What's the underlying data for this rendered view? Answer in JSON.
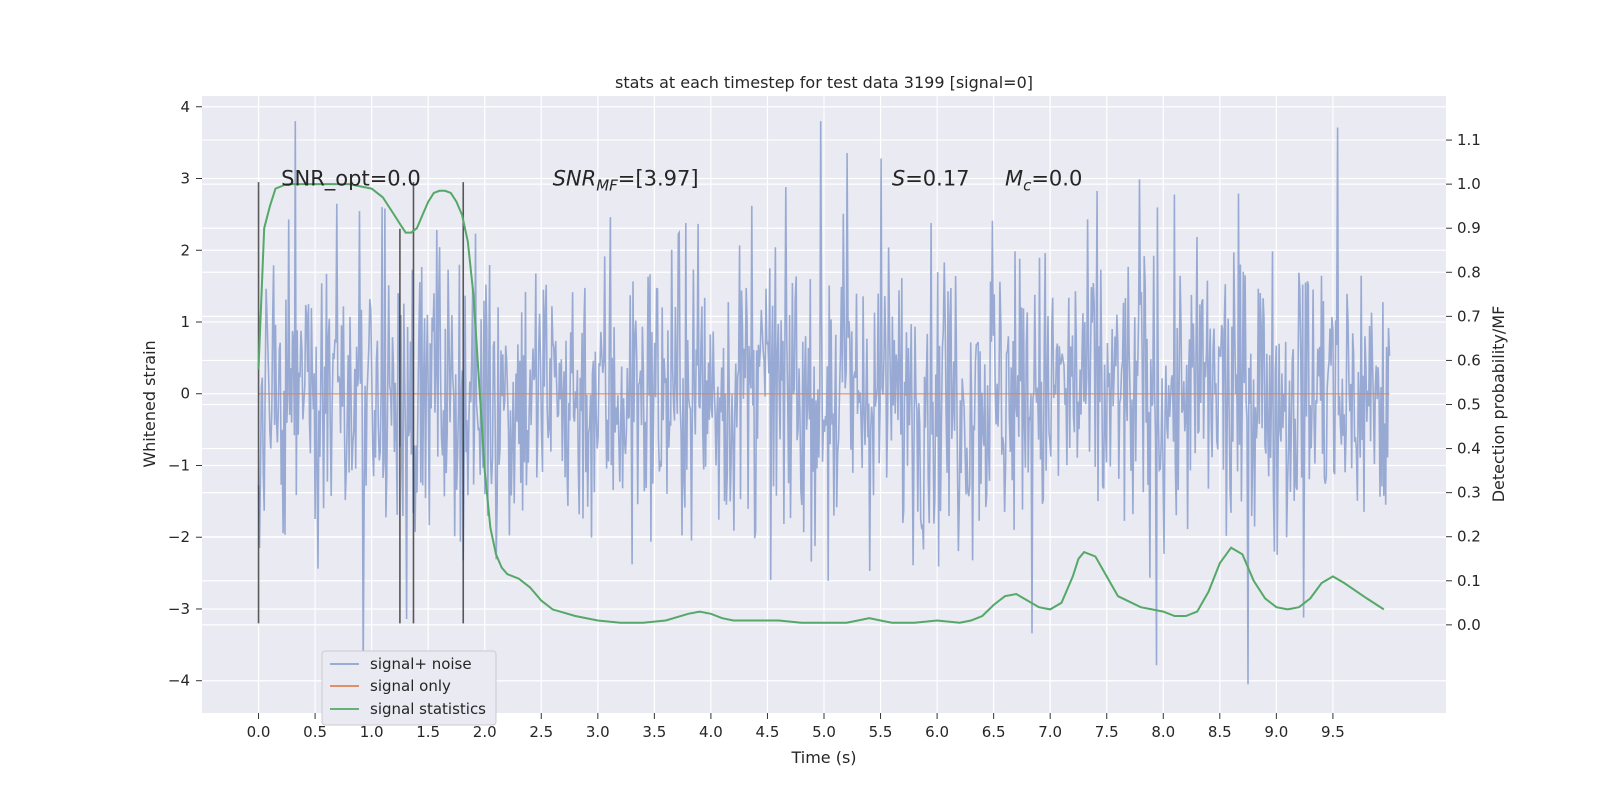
{
  "chart_data": {
    "type": "line",
    "title": "stats at each timestep for test data 3199 [signal=0]",
    "xlabel": "Time (s)",
    "ylabel": "Whitened strain",
    "y2label": "Detection probability/MF",
    "xlim": [
      -0.5,
      10.5
    ],
    "ylim": [
      -4.45,
      4.15
    ],
    "y2lim": [
      -0.2,
      1.2
    ],
    "xticks": [
      "0.0",
      "0.5",
      "1.0",
      "1.5",
      "2.0",
      "2.5",
      "3.0",
      "3.5",
      "4.0",
      "4.5",
      "5.0",
      "5.5",
      "6.0",
      "6.5",
      "7.0",
      "7.5",
      "8.0",
      "8.5",
      "9.0",
      "9.5"
    ],
    "yticks": [
      "−4",
      "−3",
      "−2",
      "−1",
      "0",
      "1",
      "2",
      "3",
      "4"
    ],
    "y2ticks": [
      "0.0",
      "0.1",
      "0.2",
      "0.3",
      "0.4",
      "0.5",
      "0.6",
      "0.7",
      "0.8",
      "0.9",
      "1.0",
      "1.1"
    ],
    "grid": true,
    "legend_position": "lower-left",
    "annotations": [
      {
        "text": "SNR_opt=0.0",
        "x": 0.2,
        "y": 3.0
      },
      {
        "text": "=[3.97]",
        "math": "SNR",
        "sub": "MF",
        "x": 2.6,
        "y": 3.0
      },
      {
        "text": "=0.17",
        "math": "S",
        "sub": "",
        "x": 5.6,
        "y": 3.0
      },
      {
        "text": "=0.0",
        "math": "M",
        "sub": "c",
        "x": 6.6,
        "y": 3.0
      }
    ],
    "vlines": [
      {
        "x": 0.0,
        "ymin": -3.2,
        "ymax": 2.95
      },
      {
        "x": 1.25,
        "ymin": -3.2,
        "ymax": 2.3
      },
      {
        "x": 1.37,
        "ymin": -3.2,
        "ymax": 2.95
      },
      {
        "x": 1.81,
        "ymin": -3.2,
        "ymax": 2.95
      }
    ],
    "series": [
      {
        "name": "signal+ noise",
        "color": "#8fa3cf",
        "x_range": [
          0.0,
          10.0
        ],
        "num_samples": 1200,
        "typical_range": [
          -1.5,
          1.5
        ],
        "min_value": -4.05,
        "max_value": 3.8
      },
      {
        "name": "signal only",
        "color": "#dd8452",
        "x": [
          0.0,
          10.0
        ],
        "values": [
          0.0,
          0.0
        ]
      },
      {
        "name": "signal statistics",
        "color": "#55a868",
        "axis": "right",
        "x": [
          0.0,
          0.05,
          0.1,
          0.15,
          0.25,
          0.4,
          0.6,
          0.8,
          1.0,
          1.1,
          1.2,
          1.25,
          1.3,
          1.35,
          1.4,
          1.45,
          1.5,
          1.55,
          1.6,
          1.65,
          1.7,
          1.75,
          1.8,
          1.85,
          1.9,
          1.95,
          2.0,
          2.05,
          2.1,
          2.15,
          2.2,
          2.3,
          2.4,
          2.5,
          2.6,
          2.8,
          3.0,
          3.2,
          3.4,
          3.6,
          3.8,
          3.9,
          4.0,
          4.1,
          4.2,
          4.4,
          4.6,
          4.8,
          5.0,
          5.2,
          5.3,
          5.4,
          5.5,
          5.6,
          5.8,
          6.0,
          6.2,
          6.3,
          6.4,
          6.5,
          6.6,
          6.7,
          6.8,
          6.9,
          7.0,
          7.1,
          7.2,
          7.25,
          7.3,
          7.4,
          7.5,
          7.6,
          7.8,
          8.0,
          8.1,
          8.2,
          8.3,
          8.4,
          8.5,
          8.6,
          8.7,
          8.8,
          8.9,
          9.0,
          9.1,
          9.2,
          9.3,
          9.4,
          9.5,
          9.6,
          9.8,
          9.95
        ],
        "values": [
          0.58,
          0.9,
          0.95,
          0.99,
          1.0,
          1.0,
          1.0,
          1.0,
          0.99,
          0.97,
          0.93,
          0.91,
          0.89,
          0.89,
          0.9,
          0.93,
          0.96,
          0.98,
          0.985,
          0.985,
          0.98,
          0.96,
          0.93,
          0.87,
          0.75,
          0.55,
          0.35,
          0.22,
          0.16,
          0.13,
          0.115,
          0.105,
          0.085,
          0.055,
          0.035,
          0.02,
          0.01,
          0.005,
          0.005,
          0.01,
          0.025,
          0.03,
          0.025,
          0.015,
          0.01,
          0.01,
          0.01,
          0.005,
          0.005,
          0.005,
          0.01,
          0.015,
          0.01,
          0.005,
          0.005,
          0.01,
          0.005,
          0.01,
          0.02,
          0.045,
          0.065,
          0.07,
          0.055,
          0.04,
          0.035,
          0.05,
          0.11,
          0.15,
          0.165,
          0.155,
          0.11,
          0.065,
          0.04,
          0.03,
          0.02,
          0.02,
          0.03,
          0.075,
          0.14,
          0.175,
          0.16,
          0.1,
          0.06,
          0.04,
          0.035,
          0.04,
          0.06,
          0.095,
          0.11,
          0.095,
          0.06,
          0.035
        ]
      }
    ]
  }
}
